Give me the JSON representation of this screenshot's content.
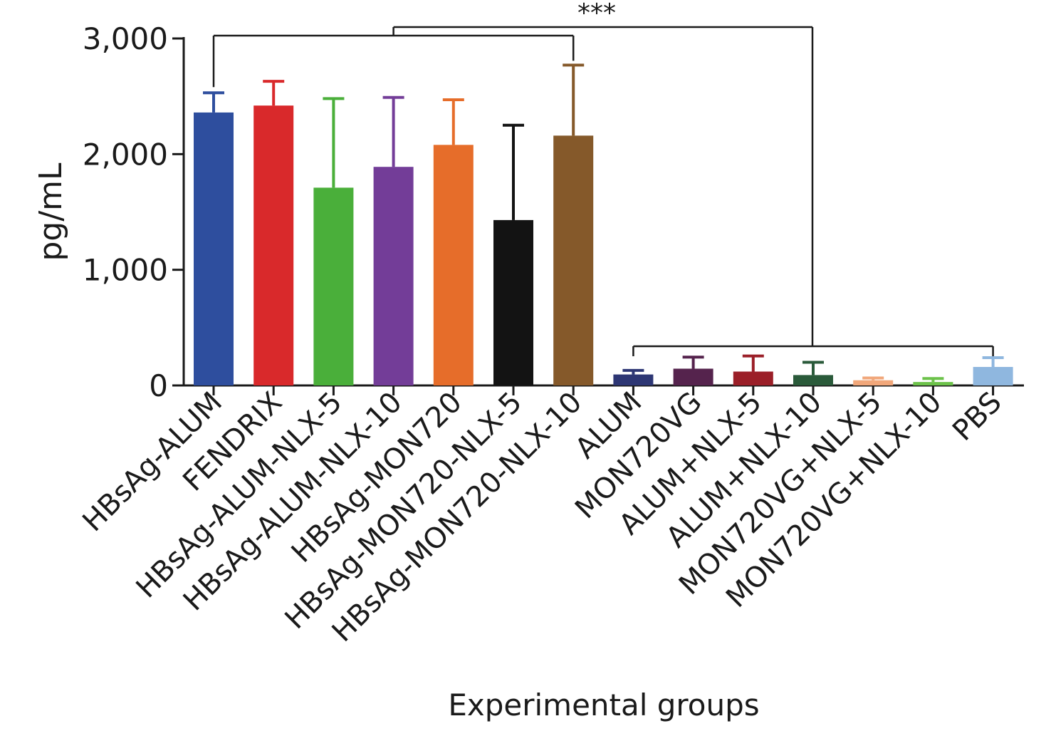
{
  "chart_data": {
    "type": "bar",
    "title": "",
    "xlabel": "Experimental groups",
    "ylabel": "pg/mL",
    "ylim": [
      0,
      3000
    ],
    "yticks": [
      0,
      1000,
      2000,
      3000
    ],
    "ytick_labels": [
      "0",
      "1,000",
      "2,000",
      "3,000"
    ],
    "grid": false,
    "legend": "none",
    "categories": [
      "HBsAg-ALUM",
      "FENDRIX",
      "HBsAg-ALUM-NLX-5",
      "HBsAg-ALUM-NLX-10",
      "HBsAg-MON720",
      "HBsAg-MON720-NLX-5",
      "HBsAg-MON720-NLX-10",
      "ALUM",
      "MON720VG",
      "ALUM+NLX-5",
      "ALUM+NLX-10",
      "MON720VG+NLX-5",
      "MON720VG+NLX-10",
      "PBS"
    ],
    "values": [
      2360,
      2420,
      1710,
      1890,
      2080,
      1430,
      2160,
      95,
      145,
      120,
      90,
      45,
      30,
      160
    ],
    "error_upper": [
      2530,
      2630,
      2480,
      2490,
      2470,
      2250,
      2770,
      130,
      245,
      255,
      200,
      65,
      60,
      240
    ],
    "colors": [
      "#2e4e9e",
      "#d9292b",
      "#4aaf3a",
      "#733d98",
      "#e66d2a",
      "#131313",
      "#85592a",
      "#2d3674",
      "#55234d",
      "#9b1f28",
      "#2a5a3a",
      "#f1a77a",
      "#6cc24a",
      "#8fb7df"
    ],
    "annotations": [
      {
        "text": "***",
        "type": "significance-bracket",
        "from_group": [
          "HBsAg-ALUM",
          "HBsAg-MON720-NLX-10"
        ],
        "to_group": [
          "ALUM",
          "PBS"
        ]
      }
    ]
  }
}
